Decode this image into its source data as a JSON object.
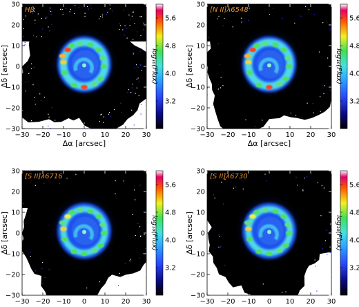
{
  "chart_data": [
    {
      "type": "heatmap",
      "title": "Hβ",
      "title_color": "#e8932e",
      "xlabel": "Δα [arcsec]",
      "ylabel": "Δδ [arcsec]",
      "xlim": [
        -30,
        30
      ],
      "ylim": [
        -30,
        30
      ],
      "xticks": [
        "−30",
        "−20",
        "−10",
        "0",
        "10",
        "20",
        "30"
      ],
      "yticks": [
        "−30",
        "−20",
        "−10",
        "0",
        "10",
        "20",
        "30"
      ],
      "colorbar": {
        "label": "log₁₀(Flux)",
        "range": [
          2.4,
          6.0
        ],
        "ticks": [
          "3.2",
          "4.0",
          "4.8",
          "5.6"
        ]
      }
    },
    {
      "type": "heatmap",
      "title": "[N II]λ6548",
      "title_color": "#e8932e",
      "xlabel": "Δα [arcsec]",
      "ylabel": "Δδ [arcsec]",
      "xlim": [
        -30,
        30
      ],
      "ylim": [
        -30,
        30
      ],
      "xticks": [
        "−30",
        "−20",
        "−10",
        "0",
        "10",
        "20",
        "30"
      ],
      "yticks": [
        "−30",
        "−20",
        "−10",
        "0",
        "10",
        "20",
        "30"
      ],
      "colorbar": {
        "label": "log₁₀(Flux)",
        "range": [
          2.4,
          6.0
        ],
        "ticks": [
          "3.2",
          "4.0",
          "4.8",
          "5.6"
        ]
      }
    },
    {
      "type": "heatmap",
      "title": "[S II]λ6716",
      "title_color": "#e8932e",
      "xlabel": "Δα [arcsec]",
      "ylabel": "Δδ [arcsec]",
      "xlim": [
        -30,
        30
      ],
      "ylim": [
        -30,
        30
      ],
      "xticks": [
        "−30",
        "−20",
        "−10",
        "0",
        "10",
        "20",
        "30"
      ],
      "yticks": [
        "−30",
        "−20",
        "−10",
        "0",
        "10",
        "20",
        "30"
      ],
      "colorbar": {
        "label": "log₁₀(Flux)",
        "range": [
          2.4,
          6.0
        ],
        "ticks": [
          "3.2",
          "4.0",
          "4.8",
          "5.6"
        ]
      }
    },
    {
      "type": "heatmap",
      "title": "[S II]λ6730",
      "title_color": "#e8932e",
      "xlabel": "Δα [arcsec]",
      "ylabel": "Δδ [arcsec]",
      "xlim": [
        -30,
        30
      ],
      "ylim": [
        -30,
        30
      ],
      "xticks": [
        "−30",
        "−20",
        "−10",
        "0",
        "10",
        "20",
        "30"
      ],
      "yticks": [
        "−30",
        "−20",
        "−10",
        "0",
        "10",
        "20",
        "30"
      ],
      "colorbar": {
        "label": "log₁₀(Flux)",
        "range": [
          2.4,
          6.0
        ],
        "ticks": [
          "3.2",
          "4.0",
          "4.8",
          "5.6"
        ]
      }
    }
  ]
}
